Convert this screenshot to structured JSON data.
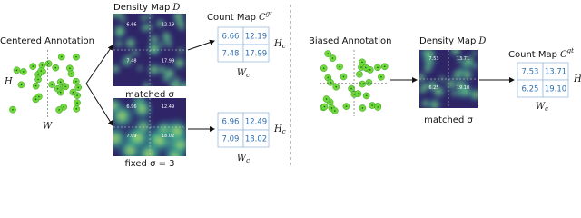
{
  "left": {
    "annotation_title": "Centered Annotation",
    "H": "H",
    "W": "W",
    "density_title": "Density Map",
    "density_symbol": "D",
    "count_title": "Count Map",
    "count_symbol": "C",
    "count_sup": "gt",
    "Hc": "H",
    "Wc": "W",
    "sub": "c",
    "top": {
      "map_labels": [
        "6.66",
        "12.19",
        "7.48",
        "17.99"
      ],
      "caption": "matched σ",
      "table": [
        [
          "6.66",
          "12.19"
        ],
        [
          "7.48",
          "17.99"
        ]
      ]
    },
    "bottom": {
      "map_labels": [
        "6.96",
        "12.49",
        "7.09",
        "18.02"
      ],
      "caption": "fixed σ = 3",
      "table": [
        [
          "6.96",
          "12.49"
        ],
        [
          "7.09",
          "18.02"
        ]
      ]
    }
  },
  "right": {
    "annotation_title": "Biased Annotation",
    "density_title": "Density Map",
    "density_symbol": "D",
    "count_title": "Count Map",
    "count_symbol": "C",
    "count_sup": "gt",
    "Hc": "H",
    "Wc": "W",
    "sub": "c",
    "map_labels": [
      "7.53",
      "13.71",
      "6.25",
      "19.10"
    ],
    "caption": "matched σ",
    "table": [
      [
        "7.53",
        "13.71"
      ],
      [
        "6.25",
        "19.10"
      ]
    ]
  }
}
